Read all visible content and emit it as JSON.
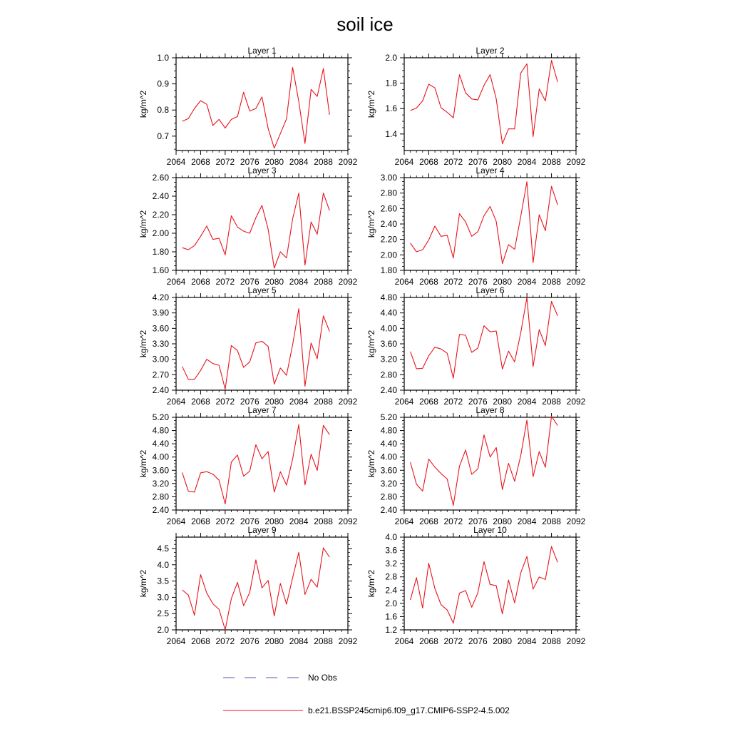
{
  "chart_data": {
    "type": "line",
    "title": "soil ice",
    "xlim": [
      2064,
      2092
    ],
    "xticks": [
      2064,
      2068,
      2072,
      2076,
      2080,
      2084,
      2088,
      2092
    ],
    "x": [
      2065,
      2066,
      2067,
      2068,
      2069,
      2070,
      2071,
      2072,
      2073,
      2074,
      2075,
      2076,
      2077,
      2078,
      2079,
      2080,
      2081,
      2082,
      2083,
      2084,
      2085,
      2086,
      2087,
      2088,
      2089
    ],
    "grid": false,
    "legend": {
      "position": "bottom",
      "entries": [
        {
          "label": "No Obs",
          "color": "#5a5aaa",
          "style": "dashed"
        },
        {
          "label": "b.e21.BSSP245cmip6.f09_g17.CMIP6-SSP2-4.5.002",
          "color": "#e8141c",
          "style": "solid"
        }
      ]
    },
    "series_color": "#e8141c",
    "panels": [
      {
        "title": "Layer 1",
        "ylabel": "kg/m^2",
        "ylim": [
          0.645,
          1.0
        ],
        "ytick_labels": [
          "0.7",
          "0.8",
          "0.9",
          "1.0"
        ],
        "values": [
          0.757,
          0.767,
          0.806,
          0.836,
          0.822,
          0.741,
          0.764,
          0.731,
          0.764,
          0.775,
          0.868,
          0.796,
          0.806,
          0.85,
          0.73,
          0.654,
          0.71,
          0.766,
          0.963,
          0.833,
          0.672,
          0.879,
          0.852,
          0.959,
          0.782
        ]
      },
      {
        "title": "Layer 2",
        "ylabel": "kg/m^2",
        "ylim": [
          1.27,
          2.0
        ],
        "ytick_labels": [
          "1.4",
          "1.6",
          "1.8",
          "2.0"
        ],
        "values": [
          1.585,
          1.604,
          1.66,
          1.792,
          1.763,
          1.607,
          1.571,
          1.527,
          1.867,
          1.724,
          1.676,
          1.668,
          1.783,
          1.867,
          1.676,
          1.323,
          1.44,
          1.44,
          1.88,
          1.953,
          1.38,
          1.755,
          1.66,
          1.98,
          1.81
        ]
      },
      {
        "title": "Layer 3",
        "ylabel": "kg/m^2",
        "ylim": [
          1.6,
          2.6
        ],
        "ytick_labels": [
          "1.60",
          "1.80",
          "2.00",
          "2.20",
          "2.40",
          "2.60"
        ],
        "values": [
          1.845,
          1.822,
          1.867,
          1.967,
          2.078,
          1.934,
          1.945,
          1.767,
          2.189,
          2.067,
          2.022,
          2.0,
          2.167,
          2.3,
          2.045,
          1.623,
          1.8,
          1.734,
          2.156,
          2.433,
          1.656,
          2.122,
          1.989,
          2.433,
          2.245
        ]
      },
      {
        "title": "Layer 4",
        "ylabel": "kg/m^2",
        "ylim": [
          1.8,
          3.0
        ],
        "ytick_labels": [
          "1.80",
          "2.00",
          "2.20",
          "2.40",
          "2.60",
          "2.80",
          "3.00"
        ],
        "values": [
          2.153,
          2.04,
          2.067,
          2.193,
          2.373,
          2.24,
          2.253,
          1.96,
          2.533,
          2.427,
          2.24,
          2.3,
          2.507,
          2.627,
          2.433,
          1.887,
          2.133,
          2.073,
          2.5,
          2.947,
          1.9,
          2.52,
          2.313,
          2.887,
          2.647
        ]
      },
      {
        "title": "Layer 5",
        "ylabel": "kg/m^2",
        "ylim": [
          2.4,
          4.2
        ],
        "ytick_labels": [
          "2.40",
          "2.70",
          "3.00",
          "3.30",
          "3.60",
          "3.90",
          "4.20"
        ],
        "values": [
          2.86,
          2.61,
          2.61,
          2.783,
          3.0,
          2.917,
          2.883,
          2.42,
          3.267,
          3.167,
          2.843,
          2.95,
          3.317,
          3.35,
          3.25,
          2.517,
          2.83,
          2.69,
          3.283,
          3.983,
          2.477,
          3.317,
          3.01,
          3.843,
          3.543
        ]
      },
      {
        "title": "Layer 6",
        "ylabel": "kg/m^2",
        "ylim": [
          2.4,
          4.8
        ],
        "ytick_labels": [
          "2.40",
          "2.80",
          "3.20",
          "3.60",
          "4.00",
          "4.40",
          "4.80"
        ],
        "values": [
          3.4,
          2.956,
          2.967,
          3.289,
          3.511,
          3.467,
          3.356,
          2.711,
          3.844,
          3.822,
          3.378,
          3.489,
          4.067,
          3.911,
          3.933,
          2.944,
          3.411,
          3.133,
          3.889,
          4.8,
          3.011,
          3.967,
          3.556,
          4.7,
          4.322
        ]
      },
      {
        "title": "Layer 7",
        "ylabel": "kg/m^2",
        "ylim": [
          2.4,
          5.2
        ],
        "ytick_labels": [
          "2.40",
          "2.80",
          "3.20",
          "3.60",
          "4.00",
          "4.40",
          "4.80",
          "5.20"
        ],
        "values": [
          3.533,
          2.967,
          2.943,
          3.523,
          3.559,
          3.483,
          3.3,
          2.58,
          3.846,
          4.06,
          3.42,
          3.573,
          4.373,
          3.946,
          4.167,
          2.94,
          3.557,
          3.153,
          3.939,
          4.98,
          3.159,
          4.087,
          3.593,
          4.957,
          4.677
        ]
      },
      {
        "title": "Layer 8",
        "ylabel": "kg/m^2",
        "ylim": [
          2.4,
          5.2
        ],
        "ytick_labels": [
          "2.40",
          "2.80",
          "3.20",
          "3.60",
          "4.00",
          "4.40",
          "4.80",
          "5.20"
        ],
        "values": [
          3.843,
          3.177,
          2.973,
          3.937,
          3.697,
          3.5,
          3.337,
          2.537,
          3.72,
          4.213,
          3.477,
          3.64,
          4.667,
          4.0,
          4.287,
          3.017,
          3.81,
          3.267,
          4.047,
          5.113,
          3.41,
          4.167,
          3.69,
          5.23,
          4.953
        ]
      },
      {
        "title": "Layer 9",
        "ylabel": "kg/m^2",
        "ylim": [
          2.0,
          4.85
        ],
        "ytick_labels": [
          "2.0",
          "2.5",
          "3.0",
          "3.5",
          "4.0",
          "4.5"
        ],
        "values": [
          3.227,
          3.07,
          2.45,
          3.697,
          3.133,
          2.803,
          2.627,
          2.0,
          2.96,
          3.46,
          2.74,
          3.15,
          4.15,
          3.29,
          3.52,
          2.427,
          3.427,
          2.79,
          3.603,
          4.38,
          3.087,
          3.553,
          3.31,
          4.52,
          4.237
        ]
      },
      {
        "title": "Layer 10",
        "ylabel": "kg/m^2",
        "ylim": [
          1.2,
          4.0
        ],
        "ytick_labels": [
          "1.2",
          "1.6",
          "2.0",
          "2.4",
          "2.8",
          "3.2",
          "3.6",
          "4.0"
        ],
        "values": [
          2.1,
          2.777,
          1.86,
          3.21,
          2.45,
          1.96,
          1.8,
          1.4,
          2.31,
          2.387,
          1.883,
          2.317,
          3.26,
          2.573,
          2.533,
          1.683,
          2.703,
          2.017,
          2.92,
          3.417,
          2.43,
          2.797,
          2.72,
          3.717,
          3.24
        ]
      }
    ]
  }
}
